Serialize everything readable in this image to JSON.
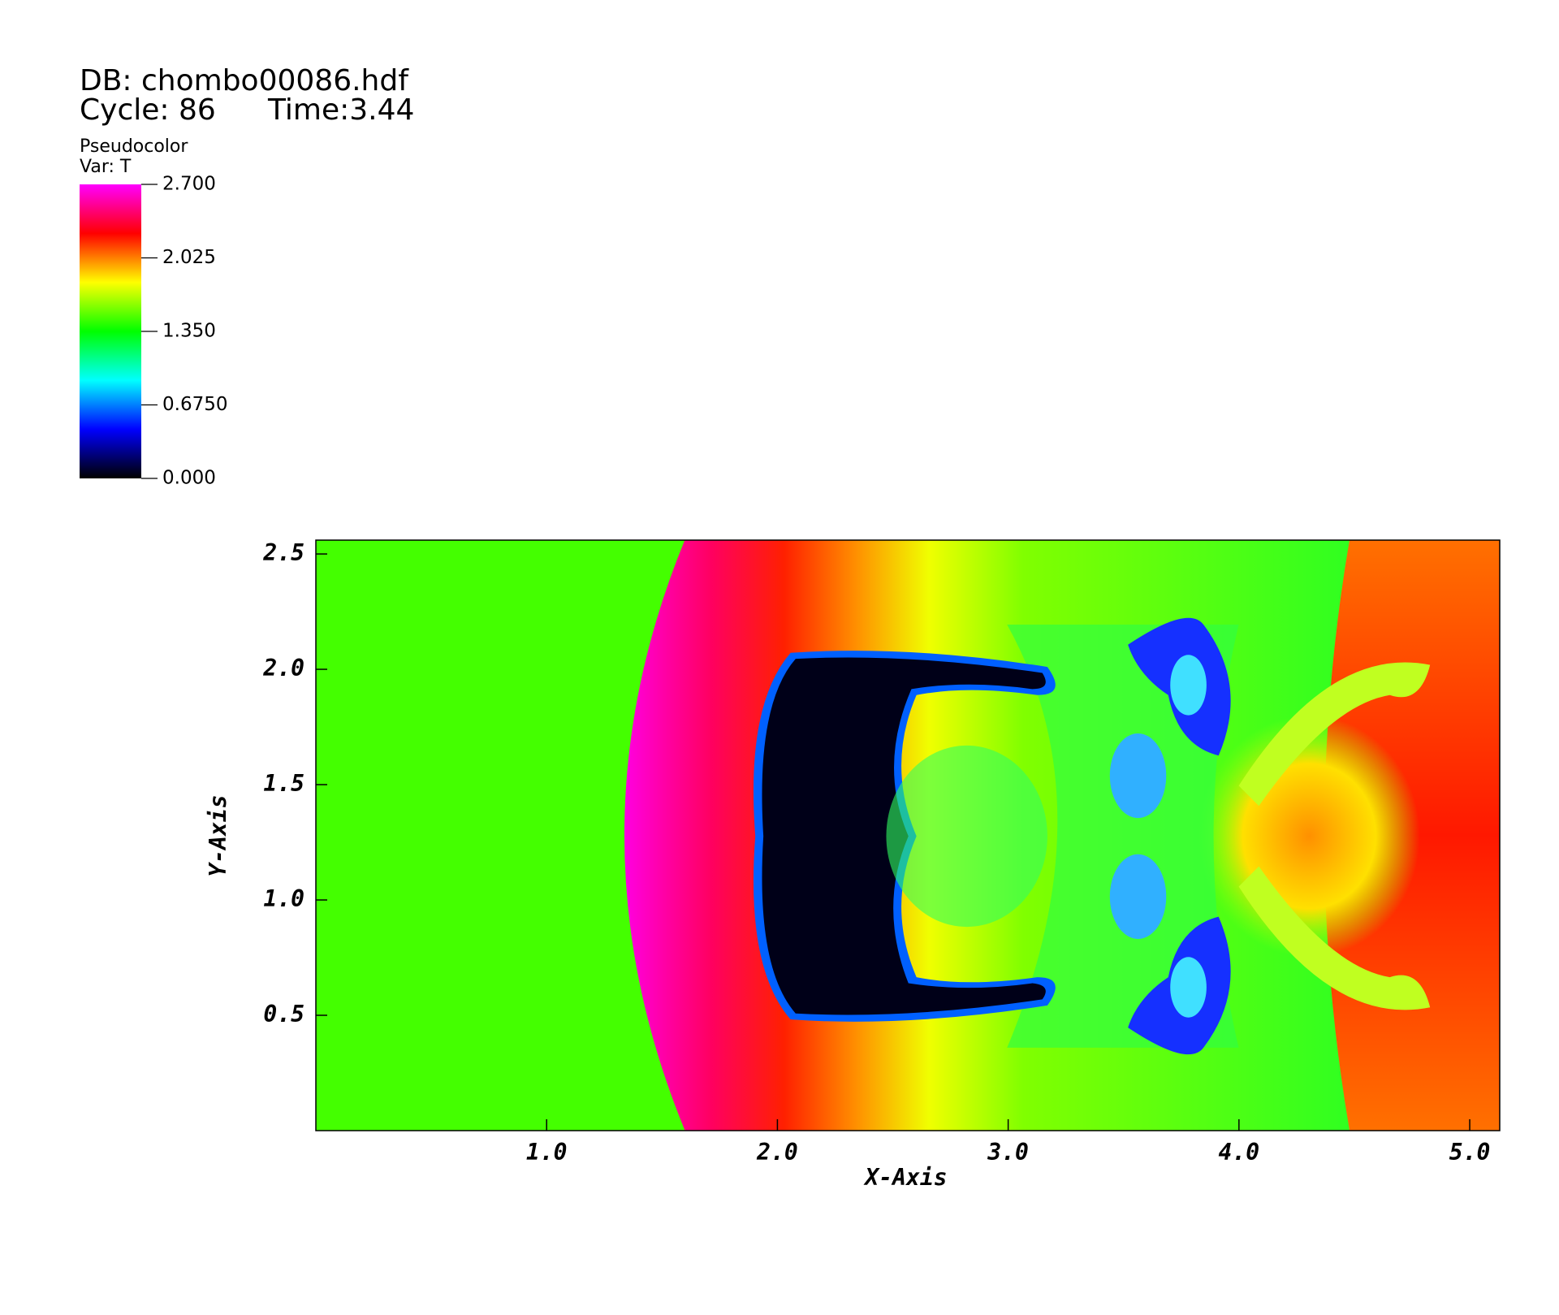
{
  "chart_data": {
    "type": "pseudocolor",
    "db_label": "DB: chombo00086.hdf",
    "cycle_label": "Cycle: 86",
    "time_label": "Time:3.44",
    "plot_label": "Pseudocolor",
    "var_label": "Var: T",
    "xlabel": "X-Axis",
    "ylabel": "Y-Axis",
    "xlim": [
      0,
      5.13
    ],
    "ylim": [
      0,
      2.56
    ],
    "xticks": [
      {
        "value": 1,
        "label": "1.0"
      },
      {
        "value": 2,
        "label": "2.0"
      },
      {
        "value": 3,
        "label": "3.0"
      },
      {
        "value": 4,
        "label": "4.0"
      },
      {
        "value": 5,
        "label": "5.0"
      }
    ],
    "yticks": [
      {
        "value": 0.5,
        "label": "0.5"
      },
      {
        "value": 1,
        "label": "1.0"
      },
      {
        "value": 1.5,
        "label": "1.5"
      },
      {
        "value": 2,
        "label": "2.0"
      },
      {
        "value": 2.5,
        "label": "2.5"
      }
    ],
    "colorbar_lim": [
      0,
      2.7
    ],
    "colorbar_ticks": [
      {
        "value": 2.7,
        "label": "2.700"
      },
      {
        "value": 2.025,
        "label": "2.025"
      },
      {
        "value": 1.35,
        "label": "1.350"
      },
      {
        "value": 0.675,
        "label": "0.6750"
      },
      {
        "value": 0,
        "label": "0.000"
      }
    ],
    "colormap": [
      "#000000",
      "#0000ff",
      "#00ffff",
      "#00ff00",
      "#ffff00",
      "#ff0000",
      "#ff00ff"
    ]
  }
}
